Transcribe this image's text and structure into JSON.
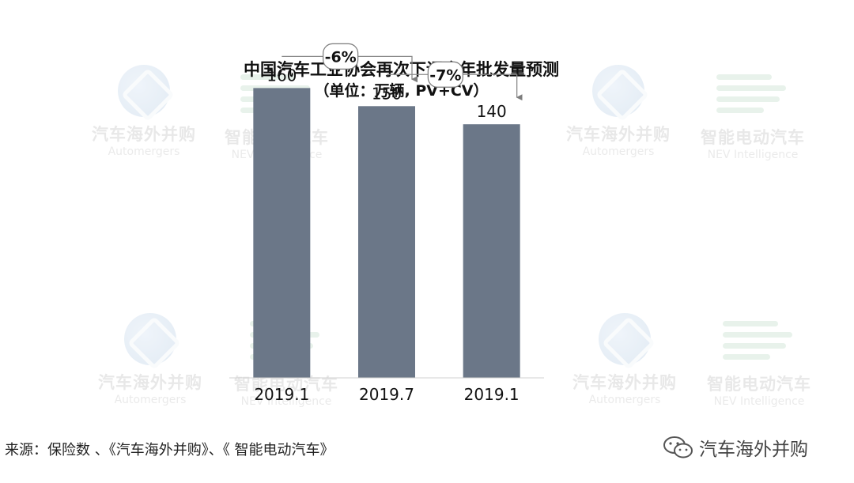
{
  "chart_data": {
    "type": "bar",
    "title": "中国汽车工业协会再次下调全年批发量预测",
    "subtitle": "（单位：万辆, PV+CV）",
    "categories": [
      "2019.1",
      "2019.7",
      "2019.1"
    ],
    "values": [
      160,
      150,
      140
    ],
    "ylim": [
      0,
      175
    ],
    "grid": false,
    "bar_color": "#6b7788",
    "annotations": [
      {
        "from": 0,
        "to": 1,
        "label": "-6%"
      },
      {
        "from": 1,
        "to": 2,
        "label": "-7%"
      }
    ]
  },
  "watermarks": {
    "cn_a": "汽车海外并购",
    "en_a": "Automergers",
    "cn_b": "智能电动汽车",
    "en_b": "NEV Intelligence"
  },
  "footer": {
    "source": "来源：保险数 、《汽车海外并购》、《 智能电动汽车》",
    "brand": "汽车海外并购",
    "brand_icon": "wechat-icon"
  }
}
